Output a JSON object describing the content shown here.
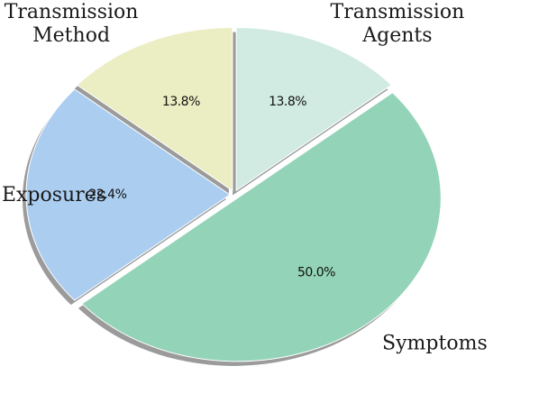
{
  "chart_data": {
    "type": "pie",
    "slices": [
      {
        "label": [
          "Transmission",
          "Method"
        ],
        "value": 13.8,
        "display": "13.8%",
        "color": "#ebedc2"
      },
      {
        "label": [
          "Exposures"
        ],
        "value": 22.4,
        "display": "22.4%",
        "color": "#abcdf0"
      },
      {
        "label": [
          "Symptoms"
        ],
        "value": 50.0,
        "display": "50.0%",
        "color": "#93d3b8"
      },
      {
        "label": [
          "Transmission",
          "Agents"
        ],
        "value": 13.8,
        "display": "13.8%",
        "color": "#d1ebe2"
      }
    ],
    "start_angle_deg": 90,
    "direction": "counterclockwise",
    "shadow": true,
    "legend": "none"
  }
}
